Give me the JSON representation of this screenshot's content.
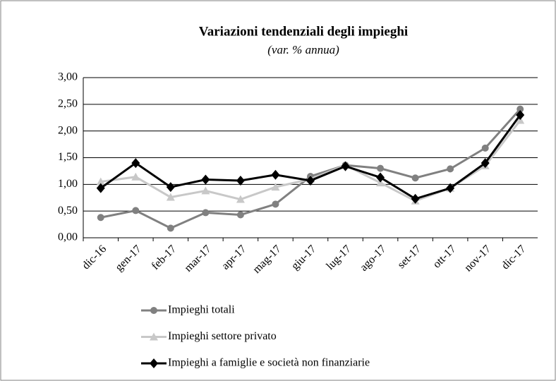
{
  "chart_data": {
    "type": "line",
    "title": "Variazioni tendenziali degli impieghi",
    "subtitle": "(var. % annua)",
    "categories": [
      "dic-16",
      "gen-17",
      "feb-17",
      "mar-17",
      "apr-17",
      "mag-17",
      "giu-17",
      "lug-17",
      "ago-17",
      "set-17",
      "ott-17",
      "nov-17",
      "dic-17"
    ],
    "series": [
      {
        "name": "Impieghi totali",
        "color": "#808080",
        "marker": "circle",
        "values": [
          0.38,
          0.51,
          0.18,
          0.47,
          0.43,
          0.63,
          1.15,
          1.36,
          1.3,
          1.12,
          1.29,
          1.68,
          2.41
        ]
      },
      {
        "name": "Impieghi settore privato",
        "color": "#c8c8c8",
        "marker": "triangle",
        "values": [
          1.05,
          1.14,
          0.76,
          0.88,
          0.72,
          0.95,
          1.1,
          1.36,
          1.03,
          0.69,
          0.93,
          1.35,
          2.2
        ]
      },
      {
        "name": "Impieghi a famiglie e società non finanziarie",
        "color": "#000000",
        "marker": "diamond",
        "values": [
          0.93,
          1.4,
          0.95,
          1.09,
          1.07,
          1.18,
          1.07,
          1.34,
          1.13,
          0.73,
          0.93,
          1.4,
          2.3
        ]
      }
    ],
    "ylim": [
      0,
      3
    ],
    "yticks": [
      {
        "value": 0,
        "label": "0,00"
      },
      {
        "value": 0.5,
        "label": "0,50"
      },
      {
        "value": 1,
        "label": "1,00"
      },
      {
        "value": 1.5,
        "label": "1,50"
      },
      {
        "value": 2,
        "label": "2,00"
      },
      {
        "value": 2.5,
        "label": "2,50"
      },
      {
        "value": 3,
        "label": "3,00"
      }
    ],
    "grid": true,
    "legend": "bottom"
  }
}
